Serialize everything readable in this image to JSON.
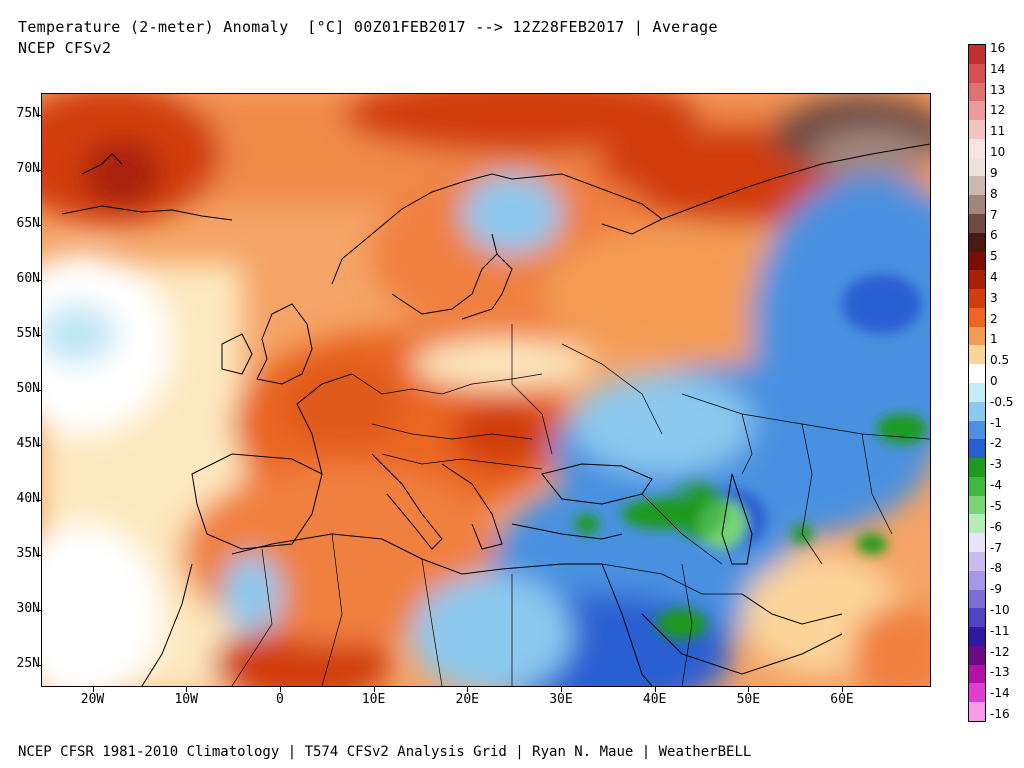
{
  "header": {
    "title": "Temperature (2-meter) Anomaly  [°C] 00Z01FEB2017 --> 12Z28FEB2017 | Average",
    "subtitle": "NCEP CFSv2"
  },
  "footer": "NCEP CFSR 1981-2010 Climatology | T574 CFSv2 Analysis Grid | Ryan N. Maue | WeatherBELL",
  "map": {
    "lat_labels": [
      "75N",
      "70N",
      "65N",
      "60N",
      "55N",
      "50N",
      "45N",
      "40N",
      "35N",
      "30N",
      "25N"
    ],
    "lon_labels": [
      "20W",
      "10W",
      "0",
      "10E",
      "20E",
      "30E",
      "40E",
      "50E",
      "60E"
    ],
    "extent": {
      "lon_min": -25.5,
      "lon_max": 69.5,
      "lat_min": 23,
      "lat_max": 77
    }
  },
  "colorbar": {
    "labels": [
      "16",
      "14",
      "13",
      "12",
      "11",
      "10",
      "9",
      "8",
      "7",
      "6",
      "5",
      "4",
      "3",
      "2",
      "1",
      "0.5",
      "0",
      "-0.5",
      "-1",
      "-2",
      "-3",
      "-4",
      "-5",
      "-6",
      "-7",
      "-8",
      "-9",
      "-10",
      "-11",
      "-12",
      "-13",
      "-14",
      "-16"
    ],
    "colors": [
      "#c0302f",
      "#d6504f",
      "#e07171",
      "#eb9b9b",
      "#f3c4c4",
      "#f8e2e2",
      "#eee2dd",
      "#cdb8b0",
      "#a3867b",
      "#6e4b42",
      "#4a1a10",
      "#7a0d04",
      "#a82008",
      "#d13d0c",
      "#ea6621",
      "#f39b55",
      "#fbd49a",
      "#ffffff",
      "#c6ecf7",
      "#8bc9ee",
      "#4a91e0",
      "#2a5fd2",
      "#1e9a1e",
      "#3fb83f",
      "#77d477",
      "#b6ecb6",
      "#e9e4f7",
      "#c9bdf0",
      "#a698e4",
      "#7c6ed6",
      "#5343c2",
      "#3318a3",
      "#6d0a86",
      "#b111a6",
      "#e03ed3",
      "#f59ce9"
    ],
    "ticks_visible": 33
  }
}
